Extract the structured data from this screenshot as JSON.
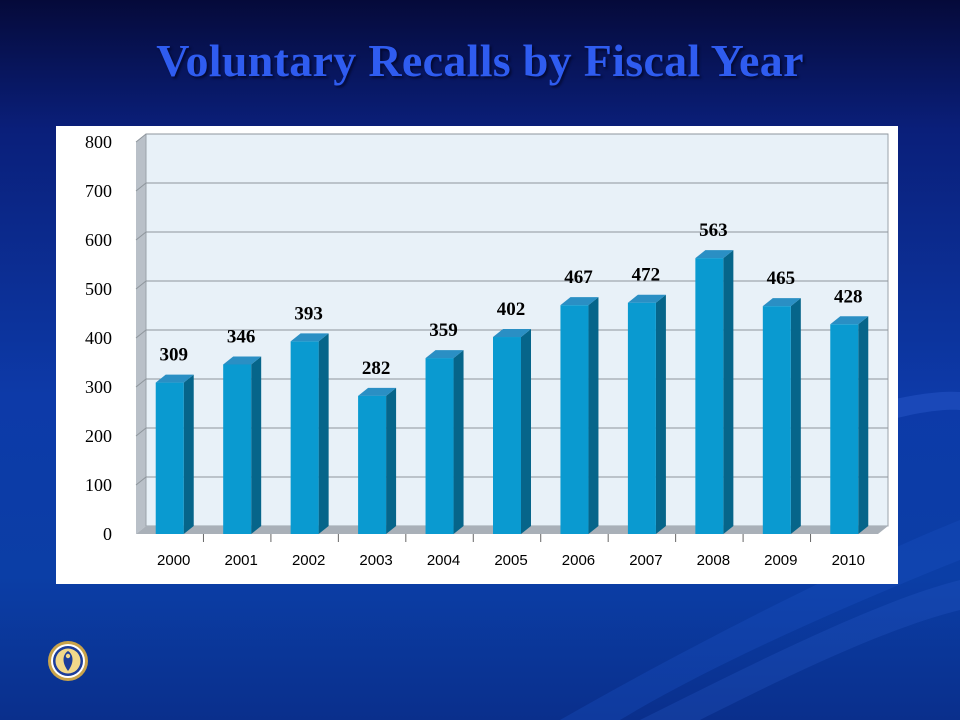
{
  "chart_data": {
    "type": "bar",
    "title": "Voluntary Recalls by Fiscal Year",
    "categories": [
      "2000",
      "2001",
      "2002",
      "2003",
      "2004",
      "2005",
      "2006",
      "2007",
      "2008",
      "2009",
      "2010"
    ],
    "values": [
      309,
      346,
      393,
      282,
      359,
      402,
      467,
      472,
      563,
      465,
      428
    ],
    "ylim": [
      0,
      800
    ],
    "yticks": [
      "0",
      "100",
      "200",
      "300",
      "400",
      "500",
      "600",
      "700",
      "800"
    ],
    "xlabel": "",
    "ylabel": "",
    "grid": true,
    "legend": "none",
    "colors": {
      "bar_front": "#0a9ad0",
      "bar_side": "#06658a",
      "bar_top": "#2a8fc4",
      "plot_back": "#e8f1f8",
      "wall": "#b9c0c8",
      "floor": "#a9b0b8",
      "grid": "#8e959c"
    }
  },
  "logo": {
    "icon": "agency-seal-icon"
  }
}
